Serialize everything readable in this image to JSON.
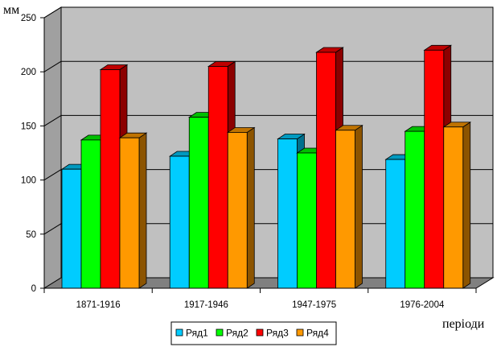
{
  "chart_data": {
    "type": "bar",
    "three_d": true,
    "categories": [
      "1871-1916",
      "1917-1946",
      "1947-1975",
      "1976-2004"
    ],
    "series": [
      {
        "name": "Ряд1",
        "color": "#00ccff",
        "values": [
          110,
          122,
          138,
          119
        ]
      },
      {
        "name": "Ряд2",
        "color": "#00ff00",
        "values": [
          137,
          158,
          125,
          145
        ]
      },
      {
        "name": "Ряд3",
        "color": "#ff0000",
        "values": [
          202,
          205,
          218,
          220
        ]
      },
      {
        "name": "Ряд4",
        "color": "#ff9900",
        "values": [
          139,
          144,
          146,
          149
        ]
      }
    ],
    "ylabel": "мм",
    "xlabel": "періоди",
    "ylim": [
      0,
      250
    ],
    "yticks": [
      0,
      50,
      100,
      150,
      200,
      250
    ],
    "grid": true,
    "legend_position": "bottom",
    "wall_color": "#c0c0c0",
    "floor_color": "#808080"
  }
}
